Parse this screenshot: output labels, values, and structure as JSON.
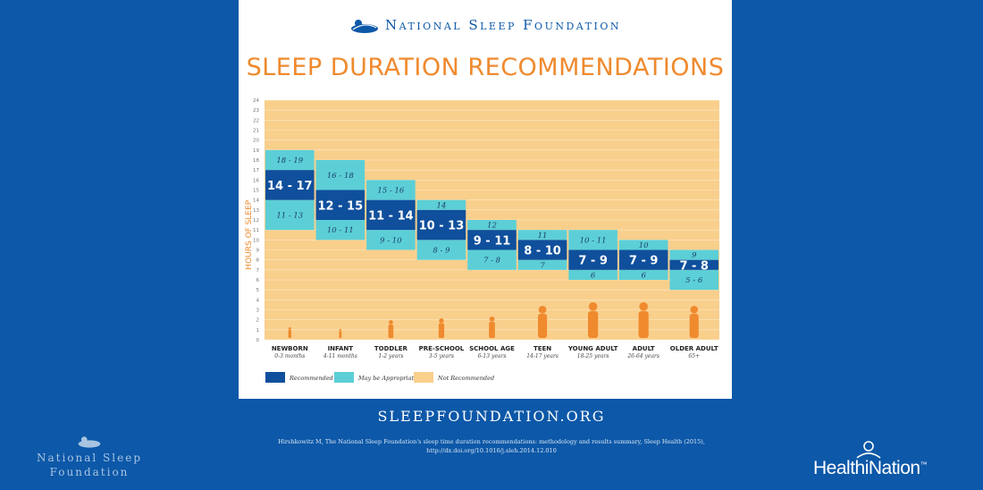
{
  "header": {
    "org_name": "National Sleep Foundation",
    "title": "SLEEP DURATION RECOMMENDATIONS"
  },
  "chart_data": {
    "type": "bar",
    "ylabel": "HOURS OF SLEEP",
    "ylim": [
      0,
      24
    ],
    "y_ticks": [
      "0",
      "1",
      "2",
      "3",
      "4",
      "5",
      "6",
      "7",
      "8",
      "9",
      "10",
      "11",
      "12",
      "13",
      "14",
      "15",
      "16",
      "17",
      "18",
      "19",
      "20",
      "21",
      "22",
      "23",
      "24"
    ],
    "categories": [
      {
        "name": "NEWBORN",
        "age": "0-3 months"
      },
      {
        "name": "INFANT",
        "age": "4-11 months"
      },
      {
        "name": "TODDLER",
        "age": "1-2 years"
      },
      {
        "name": "PRE-SCHOOL",
        "age": "3-5 years"
      },
      {
        "name": "SCHOOL AGE",
        "age": "6-13 years"
      },
      {
        "name": "TEEN",
        "age": "14-17 years"
      },
      {
        "name": "YOUNG ADULT",
        "age": "18-25 years"
      },
      {
        "name": "ADULT",
        "age": "26-64 years"
      },
      {
        "name": "OLDER ADULT",
        "age": "65+"
      }
    ],
    "series": [
      {
        "name": "Recommended",
        "color": "#0f4f9c",
        "ranges": [
          [
            14,
            17
          ],
          [
            12,
            15
          ],
          [
            11,
            14
          ],
          [
            10,
            13
          ],
          [
            9,
            11
          ],
          [
            8,
            10
          ],
          [
            7,
            9
          ],
          [
            7,
            9
          ],
          [
            7,
            8
          ]
        ],
        "labels": [
          "14 - 17",
          "12 - 15",
          "11 - 14",
          "10 - 13",
          "9 - 11",
          "8 - 10",
          "7 - 9",
          "7 - 9",
          "7 - 8"
        ]
      },
      {
        "name": "May be Appropriate",
        "color": "#5ccfd6",
        "upper_ranges": [
          [
            17,
            19
          ],
          [
            15,
            18
          ],
          [
            14,
            16
          ],
          [
            13,
            14
          ],
          [
            11,
            12
          ],
          [
            10,
            11
          ],
          [
            9,
            11
          ],
          [
            9,
            10
          ],
          [
            8,
            9
          ]
        ],
        "upper_labels": [
          "18 - 19",
          "16 - 18",
          "15 - 16",
          "14",
          "12",
          "11",
          "10 - 11",
          "10",
          "9"
        ],
        "lower_ranges": [
          [
            11,
            14
          ],
          [
            10,
            12
          ],
          [
            9,
            11
          ],
          [
            8,
            10
          ],
          [
            7,
            9
          ],
          [
            7,
            8
          ],
          [
            6,
            7
          ],
          [
            6,
            7
          ],
          [
            5,
            7
          ]
        ],
        "lower_labels": [
          "11 - 13",
          "10 - 11",
          "9 - 10",
          "8 - 9",
          "7 - 8",
          "7",
          "6",
          "6",
          "5 - 6"
        ]
      },
      {
        "name": "Not Recommended",
        "color": "#f9cf8c"
      }
    ],
    "legend": [
      {
        "label": "Recommended",
        "color": "#0f4f9c"
      },
      {
        "label": "May be Appropriate",
        "color": "#5ccfd6"
      },
      {
        "label": "Not Recommended",
        "color": "#f9cf8c"
      }
    ],
    "legend_position": "bottom-left",
    "grid": true
  },
  "footer": {
    "website": "SLEEPFOUNDATION.ORG",
    "citation_line1": "Hirshkowitz M, The National Sleep Foundation's sleep time duration recommendations: methodology and results summary, Sleep Health (2015),",
    "citation_line2": "http://dx.doi.org/10.1016/j.sleh.2014.12.010",
    "left_logo_line1": "National Sleep",
    "left_logo_line2": "Foundation",
    "right_logo_text": "HealthiNation",
    "right_logo_tm": "™"
  },
  "colors": {
    "page_bg": "#0d58a8",
    "title_orange": "#ef8a2e",
    "silhouette": "#ef8a2e"
  }
}
